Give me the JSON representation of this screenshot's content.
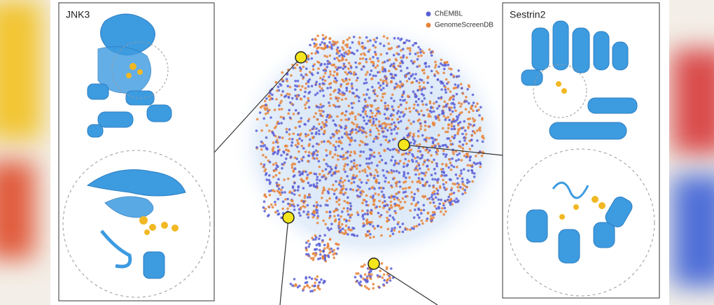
{
  "panels": {
    "left": {
      "label": "JNK3"
    },
    "right": {
      "label": "Sestrin2"
    }
  },
  "legend": {
    "items": [
      {
        "name": "ChEMBL",
        "color": "#5b5fd6"
      },
      {
        "name": "GenomeScreenDB",
        "color": "#e8843a"
      }
    ]
  }
}
